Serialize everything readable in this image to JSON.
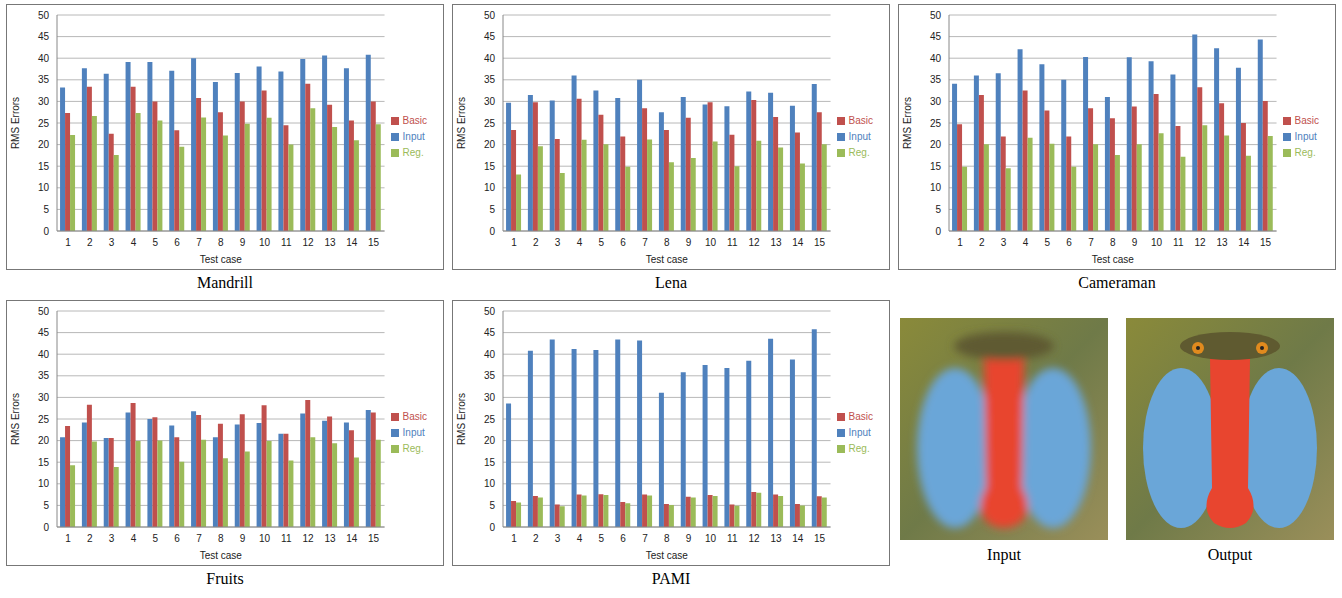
{
  "chart_data": [
    {
      "type": "bar",
      "title": "Mandrill",
      "x_label": "Test case",
      "y_label": "RMS Errors",
      "categories": [
        "1",
        "2",
        "3",
        "4",
        "5",
        "6",
        "7",
        "8",
        "9",
        "10",
        "11",
        "12",
        "13",
        "14",
        "15"
      ],
      "series": [
        {
          "name": "Input",
          "color": "#4f81bd",
          "values": [
            33.2,
            37.7,
            36.4,
            39.1,
            39.1,
            37.1,
            40.0,
            34.5,
            36.6,
            38.1,
            36.9,
            39.8,
            40.6,
            37.7,
            40.8
          ]
        },
        {
          "name": "Basic",
          "color": "#c0504d",
          "values": [
            27.3,
            33.4,
            22.5,
            33.4,
            30.0,
            23.3,
            30.8,
            27.5,
            30.0,
            32.5,
            24.5,
            34.1,
            29.2,
            25.6,
            30.0
          ]
        },
        {
          "name": "Reg.",
          "color": "#9bbb59",
          "values": [
            22.2,
            26.6,
            17.6,
            27.3,
            25.6,
            19.5,
            26.3,
            22.1,
            24.8,
            26.2,
            20.0,
            28.4,
            24.1,
            21.0,
            24.7
          ]
        }
      ],
      "ylim": [
        0,
        50
      ],
      "yticks": [
        0,
        5,
        10,
        15,
        20,
        25,
        30,
        35,
        40,
        45,
        50
      ],
      "grid": true,
      "legend": "right"
    },
    {
      "type": "bar",
      "title": "Lena",
      "x_label": "Test case",
      "y_label": "RMS Errors",
      "categories": [
        "1",
        "2",
        "3",
        "4",
        "5",
        "6",
        "7",
        "8",
        "9",
        "10",
        "11",
        "12",
        "13",
        "14",
        "15"
      ],
      "series": [
        {
          "name": "Input",
          "color": "#4f81bd",
          "values": [
            29.7,
            31.5,
            30.2,
            36.0,
            32.5,
            30.8,
            35.0,
            27.5,
            31.0,
            29.3,
            28.9,
            32.3,
            32.0,
            29.0,
            34.0
          ]
        },
        {
          "name": "Basic",
          "color": "#c0504d",
          "values": [
            23.4,
            29.8,
            21.3,
            30.6,
            26.9,
            21.9,
            28.4,
            23.4,
            26.2,
            29.8,
            22.3,
            30.3,
            26.4,
            22.8,
            27.5
          ]
        },
        {
          "name": "Reg.",
          "color": "#9bbb59",
          "values": [
            13.1,
            19.6,
            13.4,
            21.1,
            20.1,
            14.9,
            21.2,
            15.9,
            16.9,
            20.7,
            15.0,
            20.9,
            19.3,
            15.6,
            20.1
          ]
        }
      ],
      "ylim": [
        0,
        50
      ],
      "yticks": [
        0,
        5,
        10,
        15,
        20,
        25,
        30,
        35,
        40,
        45,
        50
      ],
      "grid": true,
      "legend": "right"
    },
    {
      "type": "bar",
      "title": "Cameraman",
      "x_label": "Test case",
      "y_label": "RMS Errors",
      "categories": [
        "1",
        "2",
        "3",
        "4",
        "5",
        "6",
        "7",
        "8",
        "9",
        "10",
        "11",
        "12",
        "13",
        "14",
        "15"
      ],
      "series": [
        {
          "name": "Input",
          "color": "#4f81bd",
          "values": [
            34.1,
            36.0,
            36.5,
            42.1,
            38.6,
            35.0,
            40.3,
            31.0,
            40.2,
            39.3,
            36.2,
            45.5,
            42.3,
            37.8,
            44.3
          ]
        },
        {
          "name": "Basic",
          "color": "#c0504d",
          "values": [
            24.7,
            31.5,
            21.9,
            32.5,
            27.9,
            21.9,
            28.4,
            26.1,
            28.8,
            31.7,
            24.3,
            33.3,
            29.6,
            25.0,
            30.1
          ]
        },
        {
          "name": "Reg.",
          "color": "#9bbb59",
          "values": [
            14.9,
            20.1,
            14.5,
            21.6,
            20.2,
            14.9,
            20.1,
            17.6,
            20.1,
            22.6,
            17.2,
            24.5,
            22.1,
            17.4,
            22.0
          ]
        }
      ],
      "ylim": [
        0,
        50
      ],
      "yticks": [
        0,
        5,
        10,
        15,
        20,
        25,
        30,
        35,
        40,
        45,
        50
      ],
      "grid": true,
      "legend": "right"
    },
    {
      "type": "bar",
      "title": "Fruits",
      "x_label": "Test case",
      "y_label": "RMS Errors",
      "categories": [
        "1",
        "2",
        "3",
        "4",
        "5",
        "6",
        "7",
        "8",
        "9",
        "10",
        "11",
        "12",
        "13",
        "14",
        "15"
      ],
      "series": [
        {
          "name": "Input",
          "color": "#4f81bd",
          "values": [
            20.8,
            24.2,
            20.6,
            26.5,
            25.0,
            23.5,
            26.8,
            20.8,
            23.7,
            24.1,
            21.6,
            26.3,
            24.6,
            24.2,
            27.1
          ]
        },
        {
          "name": "Basic",
          "color": "#c0504d",
          "values": [
            23.4,
            28.3,
            20.6,
            28.7,
            25.4,
            20.8,
            25.9,
            23.9,
            26.1,
            28.2,
            21.6,
            29.4,
            25.6,
            22.4,
            26.5
          ]
        },
        {
          "name": "Reg.",
          "color": "#9bbb59",
          "values": [
            14.3,
            19.8,
            13.9,
            19.9,
            20.0,
            15.1,
            20.2,
            15.9,
            17.5,
            19.9,
            15.4,
            20.8,
            19.4,
            16.1,
            20.2
          ]
        }
      ],
      "ylim": [
        0,
        50
      ],
      "yticks": [
        0,
        5,
        10,
        15,
        20,
        25,
        30,
        35,
        40,
        45,
        50
      ],
      "grid": true,
      "legend": "right"
    },
    {
      "type": "bar",
      "title": "PAMI",
      "x_label": "Test case",
      "y_label": "RMS Errors",
      "categories": [
        "1",
        "2",
        "3",
        "4",
        "5",
        "6",
        "7",
        "8",
        "9",
        "10",
        "11",
        "12",
        "13",
        "14",
        "15"
      ],
      "series": [
        {
          "name": "Input",
          "color": "#4f81bd",
          "values": [
            28.6,
            40.8,
            43.4,
            41.2,
            41.0,
            43.4,
            43.2,
            31.1,
            35.8,
            37.5,
            36.8,
            38.5,
            43.6,
            38.8,
            45.8
          ]
        },
        {
          "name": "Basic",
          "color": "#c0504d",
          "values": [
            6.0,
            7.2,
            5.2,
            7.5,
            7.6,
            5.8,
            7.5,
            5.3,
            7.0,
            7.4,
            5.2,
            8.1,
            7.5,
            5.3,
            7.1
          ]
        },
        {
          "name": "Reg.",
          "color": "#9bbb59",
          "values": [
            5.7,
            6.8,
            4.8,
            7.3,
            7.4,
            5.5,
            7.3,
            5.1,
            6.8,
            7.2,
            4.9,
            7.9,
            7.2,
            5.0,
            6.8
          ]
        }
      ],
      "ylim": [
        0,
        50
      ],
      "yticks": [
        0,
        5,
        10,
        15,
        20,
        25,
        30,
        35,
        40,
        45,
        50
      ],
      "grid": true,
      "legend": "right"
    }
  ],
  "images": [
    {
      "label": "Input"
    },
    {
      "label": "Output"
    }
  ]
}
